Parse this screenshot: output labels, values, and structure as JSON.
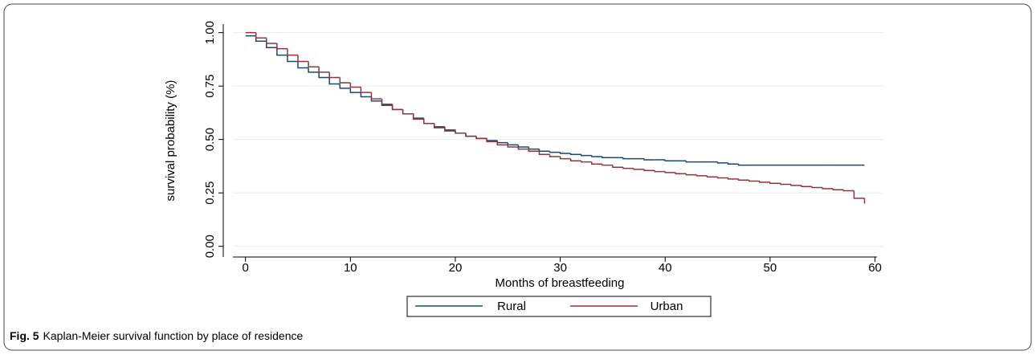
{
  "chart_data": {
    "type": "step",
    "caption_label": "Fig. 5",
    "caption": "Kaplan-Meier survival function by place of residence",
    "x_label": "Months of breastfeeding",
    "y_label": "survival probability (%)",
    "x": [
      0,
      1,
      2,
      3,
      4,
      5,
      6,
      7,
      8,
      9,
      10,
      11,
      12,
      13,
      14,
      15,
      16,
      17,
      18,
      19,
      20,
      21,
      22,
      23,
      24,
      25,
      26,
      27,
      28,
      29,
      30,
      31,
      32,
      33,
      34,
      35,
      36,
      37,
      38,
      39,
      40,
      41,
      42,
      43,
      44,
      45,
      46,
      47,
      48,
      49,
      50,
      51,
      52,
      53,
      54,
      55,
      56,
      57,
      58,
      59
    ],
    "series": [
      {
        "name": "Rural",
        "color": "#1a476f",
        "values": [
          0.985,
          0.96,
          0.93,
          0.895,
          0.865,
          0.835,
          0.815,
          0.79,
          0.76,
          0.74,
          0.72,
          0.7,
          0.68,
          0.66,
          0.64,
          0.62,
          0.6,
          0.575,
          0.555,
          0.54,
          0.53,
          0.515,
          0.505,
          0.495,
          0.485,
          0.475,
          0.465,
          0.455,
          0.445,
          0.44,
          0.435,
          0.43,
          0.425,
          0.42,
          0.415,
          0.415,
          0.41,
          0.41,
          0.405,
          0.405,
          0.4,
          0.4,
          0.395,
          0.395,
          0.395,
          0.39,
          0.385,
          0.38,
          0.38,
          0.38,
          0.38,
          0.38,
          0.38,
          0.38,
          0.38,
          0.38,
          0.38,
          0.38,
          0.38,
          0.38
        ]
      },
      {
        "name": "Urban",
        "color": "#90353b",
        "values": [
          1.0,
          0.975,
          0.95,
          0.925,
          0.895,
          0.865,
          0.84,
          0.815,
          0.79,
          0.765,
          0.745,
          0.72,
          0.69,
          0.665,
          0.64,
          0.62,
          0.595,
          0.575,
          0.56,
          0.545,
          0.53,
          0.515,
          0.505,
          0.49,
          0.475,
          0.465,
          0.455,
          0.445,
          0.43,
          0.42,
          0.41,
          0.4,
          0.395,
          0.385,
          0.38,
          0.37,
          0.365,
          0.36,
          0.355,
          0.35,
          0.345,
          0.34,
          0.335,
          0.33,
          0.325,
          0.32,
          0.315,
          0.31,
          0.305,
          0.3,
          0.295,
          0.29,
          0.285,
          0.28,
          0.275,
          0.27,
          0.265,
          0.26,
          0.225,
          0.2
        ]
      }
    ],
    "xlim": [
      -1.2,
      60.8
    ],
    "xticks": [
      0,
      10,
      20,
      30,
      40,
      50,
      60
    ],
    "ylim": [
      -0.05,
      1.04
    ],
    "yticks": [
      {
        "value": 0,
        "label": "0.00"
      },
      {
        "value": 0.25,
        "label": "0.25"
      },
      {
        "value": 0.5,
        "label": "0.50"
      },
      {
        "value": 0.75,
        "label": "0.75"
      },
      {
        "value": 1,
        "label": "1.00"
      }
    ],
    "grid": true,
    "legend": "bottom"
  }
}
